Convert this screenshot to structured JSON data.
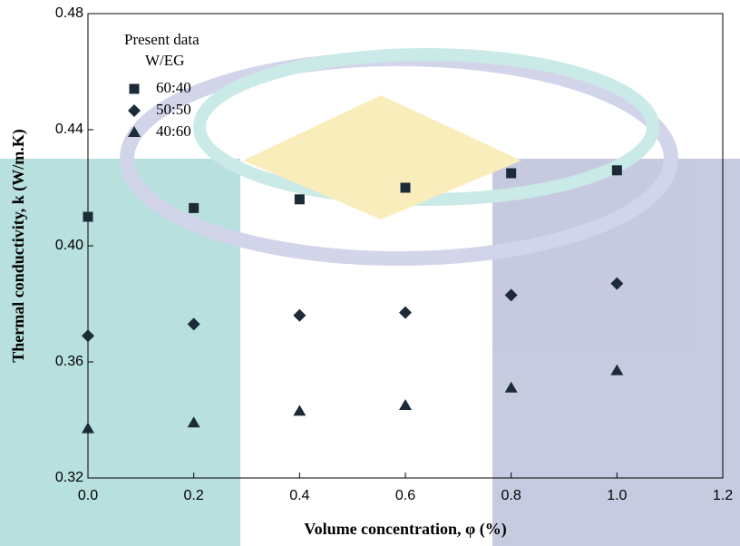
{
  "chart_data": {
    "type": "scatter",
    "x_label": "Volume concentration, φ (%)",
    "y_label": "Thermal conductivity, k (W/m.K)",
    "legend_title": "Present data",
    "legend_subtitle": "W/EG",
    "x": [
      0,
      0.2,
      0.4,
      0.6,
      0.8,
      1.0
    ],
    "series": [
      {
        "name": "60:40",
        "color": "#1d2b38",
        "marker": "square",
        "values": [
          0.41,
          0.413,
          0.416,
          0.42,
          0.425,
          0.426
        ]
      },
      {
        "name": "50:50",
        "color": "#1d2b38",
        "marker": "diamond",
        "values": [
          0.369,
          0.373,
          0.376,
          0.377,
          0.383,
          0.387
        ]
      },
      {
        "name": "40:60",
        "color": "#1d2b38",
        "marker": "triangle",
        "values": [
          0.337,
          0.339,
          0.343,
          0.345,
          0.351,
          0.357
        ]
      }
    ],
    "xlim": [
      0,
      1.2
    ],
    "xticks": [
      {
        "value": 0,
        "label": "0.0"
      },
      0.2,
      0.4,
      0.6,
      0.8,
      {
        "value": 1.0,
        "label": "1.0"
      },
      1.2
    ],
    "ylim": [
      0.32,
      0.48
    ],
    "yticks": [
      0.32,
      0.36,
      {
        "value": 0.4,
        "label": "0.40"
      },
      0.44,
      0.48
    ]
  }
}
